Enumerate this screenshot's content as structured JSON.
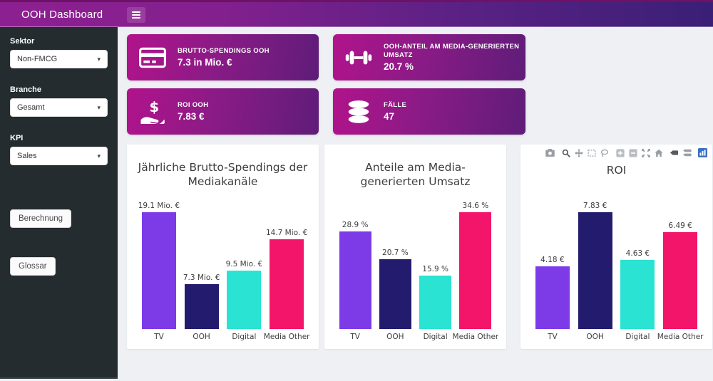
{
  "header": {
    "title": "OOH Dashboard"
  },
  "sidebar": {
    "filters": [
      {
        "label": "Sektor",
        "value": "Non-FMCG"
      },
      {
        "label": "Branche",
        "value": "Gesamt"
      },
      {
        "label": "KPI",
        "value": "Sales"
      }
    ],
    "buttons": {
      "berechnung": "Berechnung",
      "glossar": "Glossar"
    }
  },
  "kpi_cards": [
    {
      "icon": "credit-card-icon",
      "label": "BRUTTO-SPENDINGS OOH",
      "value": "7.3 in Mio. €"
    },
    {
      "icon": "dumbbell-icon",
      "label": "OOH-ANTEIL AM MEDIA-GENERIERTEN UMSATZ",
      "value": "20.7 %"
    },
    {
      "icon": "dollar-hand-icon",
      "label": "ROI OOH",
      "value": "7.83 €"
    },
    {
      "icon": "database-icon",
      "label": "FÄLLE",
      "value": "47"
    }
  ],
  "chart_data": [
    {
      "id": "brutto-spendings",
      "type": "bar",
      "title": "Jährliche Brutto-Spendings der Mediakanäle",
      "categories": [
        "TV",
        "OOH",
        "Digital",
        "Media Other"
      ],
      "values": [
        19.1,
        7.3,
        9.5,
        14.7
      ],
      "value_labels": [
        "19.1 Mio. €",
        "7.3 Mio. €",
        "9.5 Mio. €",
        "14.7 Mio. €"
      ],
      "bar_colors": [
        "#7d3be8",
        "#231c6e",
        "#2be3d2",
        "#f31569"
      ],
      "xlabel": "",
      "ylabel": "",
      "ylim": [
        0,
        20.1
      ],
      "grid": false,
      "legend": false
    },
    {
      "id": "umsatz-anteile",
      "type": "bar",
      "title": "Anteile am Media-generierten Umsatz",
      "categories": [
        "TV",
        "OOH",
        "Digital",
        "Media Other"
      ],
      "values": [
        28.9,
        20.7,
        15.9,
        34.6
      ],
      "value_labels": [
        "28.9 %",
        "20.7 %",
        "15.9 %",
        "34.6 %"
      ],
      "bar_colors": [
        "#7d3be8",
        "#231c6e",
        "#2be3d2",
        "#f31569"
      ],
      "xlabel": "",
      "ylabel": "",
      "ylim": [
        0,
        36.4
      ],
      "grid": false,
      "legend": false
    },
    {
      "id": "roi",
      "type": "bar",
      "title": "ROI",
      "categories": [
        "TV",
        "OOH",
        "Digital",
        "Media Other"
      ],
      "values": [
        4.18,
        7.83,
        4.63,
        6.49
      ],
      "value_labels": [
        "4.18 €",
        "7.83 €",
        "4.63 €",
        "6.49 €"
      ],
      "bar_colors": [
        "#7d3be8",
        "#231c6e",
        "#2be3d2",
        "#f31569"
      ],
      "xlabel": "",
      "ylabel": "",
      "ylim": [
        0,
        8.25
      ],
      "grid": false,
      "legend": false
    }
  ],
  "modebar": {
    "icons": [
      "camera-icon",
      "zoom-icon",
      "pan-icon",
      "box-select-icon",
      "lasso-select-icon",
      "zoom-in-icon",
      "zoom-out-icon",
      "autoscale-icon",
      "reset-axes-icon",
      "hover-closest-icon",
      "hover-compare-icon",
      "plotly-logo-icon"
    ]
  },
  "colors": {
    "header_gradient_left": "#8d2090",
    "header_gradient_right": "#3a1f76",
    "card_gradient_left": "#b1138b",
    "card_gradient_right": "#5f1c79",
    "sidebar_bg": "#242c2f",
    "page_bg": "#eef0f4",
    "bar_tv": "#7d3be8",
    "bar_ooh": "#231c6e",
    "bar_digital": "#2be3d2",
    "bar_media_other": "#f31569",
    "plotly_logo_blue": "#3a70c0",
    "modebar_gray": "#9a9ea5",
    "modebar_active": "#545a61"
  }
}
